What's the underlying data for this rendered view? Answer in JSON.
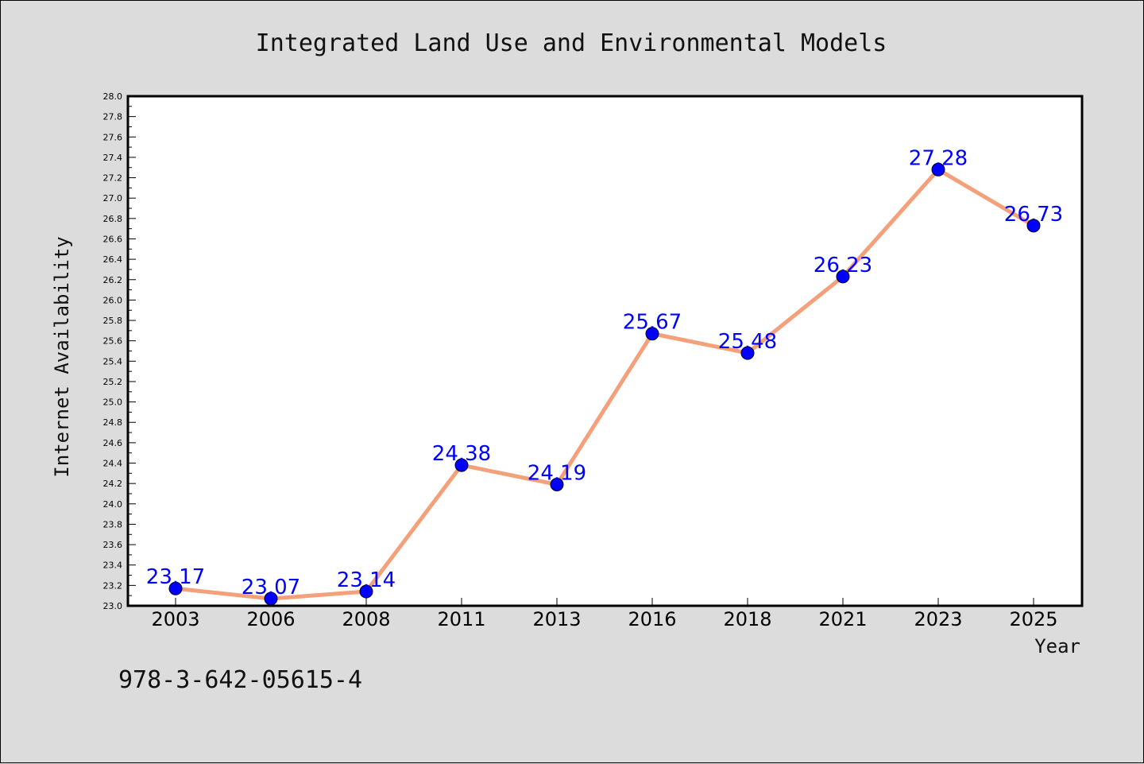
{
  "chart_data": {
    "type": "line",
    "title": "Integrated Land Use and Environmental Models",
    "xlabel": "Year",
    "ylabel": "Internet Availability",
    "categories": [
      "2003",
      "2006",
      "2008",
      "2011",
      "2013",
      "2016",
      "2018",
      "2021",
      "2023",
      "2025"
    ],
    "series": [
      {
        "values": [
          23.17,
          23.07,
          23.14,
          24.38,
          24.19,
          25.67,
          25.48,
          26.23,
          27.28,
          26.73
        ]
      }
    ],
    "data_labels": [
      "23.17",
      "23.07",
      "23.14",
      "24.38",
      "24.19",
      "25.67",
      "25.48",
      "26.23",
      "27.28",
      "26.73"
    ],
    "ylim": [
      23.0,
      28.0
    ],
    "y_major_step": 0.2,
    "y_minor_step": 0.1,
    "grid": false,
    "legend": "none",
    "line_color": "#f4a07a",
    "marker_color": "#0000ff",
    "label_color": "#0000ff"
  },
  "footnote": "978-3-642-05615-4"
}
